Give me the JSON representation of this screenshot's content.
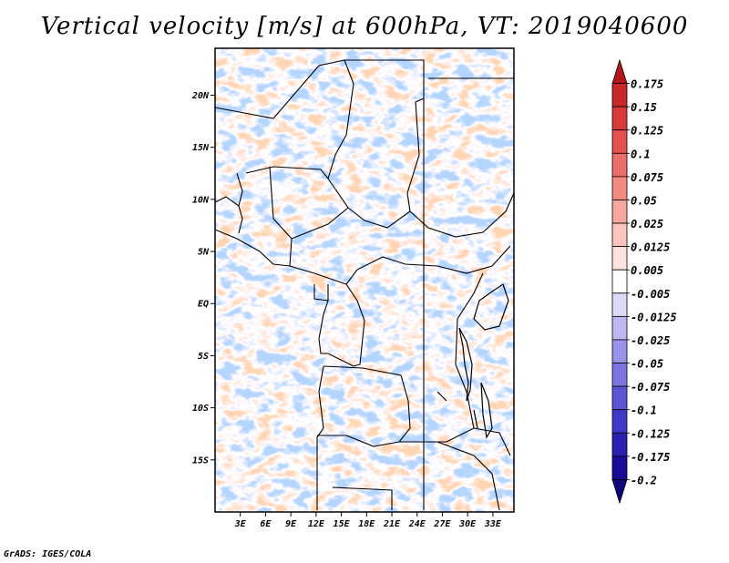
{
  "title": "Vertical velocity [m/s] at 600hPa, VT: 2019040600",
  "footer": "GrADS: IGES/COLA",
  "map": {
    "lon_range": [
      0,
      35.5
    ],
    "lat_range": [
      -20,
      24.5
    ],
    "lat_ticks": [
      {
        "value": 20,
        "label": "20N"
      },
      {
        "value": 15,
        "label": "15N"
      },
      {
        "value": 10,
        "label": "10N"
      },
      {
        "value": 5,
        "label": "5N"
      },
      {
        "value": 0,
        "label": "EQ"
      },
      {
        "value": -5,
        "label": "5S"
      },
      {
        "value": -10,
        "label": "10S"
      },
      {
        "value": -15,
        "label": "15S"
      }
    ],
    "lon_ticks": [
      {
        "value": 3,
        "label": "3E"
      },
      {
        "value": 6,
        "label": "6E"
      },
      {
        "value": 9,
        "label": "9E"
      },
      {
        "value": 12,
        "label": "12E"
      },
      {
        "value": 15,
        "label": "15E"
      },
      {
        "value": 18,
        "label": "18E"
      },
      {
        "value": 21,
        "label": "21E"
      },
      {
        "value": 24,
        "label": "24E"
      },
      {
        "value": 27,
        "label": "27E"
      },
      {
        "value": 30,
        "label": "30E"
      },
      {
        "value": 33,
        "label": "33E"
      }
    ]
  },
  "colorbar": {
    "labels": [
      "0.175",
      "0.15",
      "0.125",
      "0.1",
      "0.075",
      "0.05",
      "0.025",
      "0.0125",
      "0.005",
      "-0.005",
      "-0.0125",
      "-0.025",
      "-0.05",
      "-0.075",
      "-0.1",
      "-0.125",
      "-0.175",
      "-0.2"
    ],
    "colors": [
      "#b4161a",
      "#c8282a",
      "#d83a3a",
      "#e4524f",
      "#ec6e68",
      "#f28a82",
      "#f6a8a0",
      "#fac4bd",
      "#fde2de",
      "#ffffff",
      "#dcdaf6",
      "#bdb8f0",
      "#9a94e8",
      "#7c74e0",
      "#5d55d6",
      "#4038c8",
      "#2a20b2",
      "#1a0c96",
      "#10047a"
    ]
  }
}
